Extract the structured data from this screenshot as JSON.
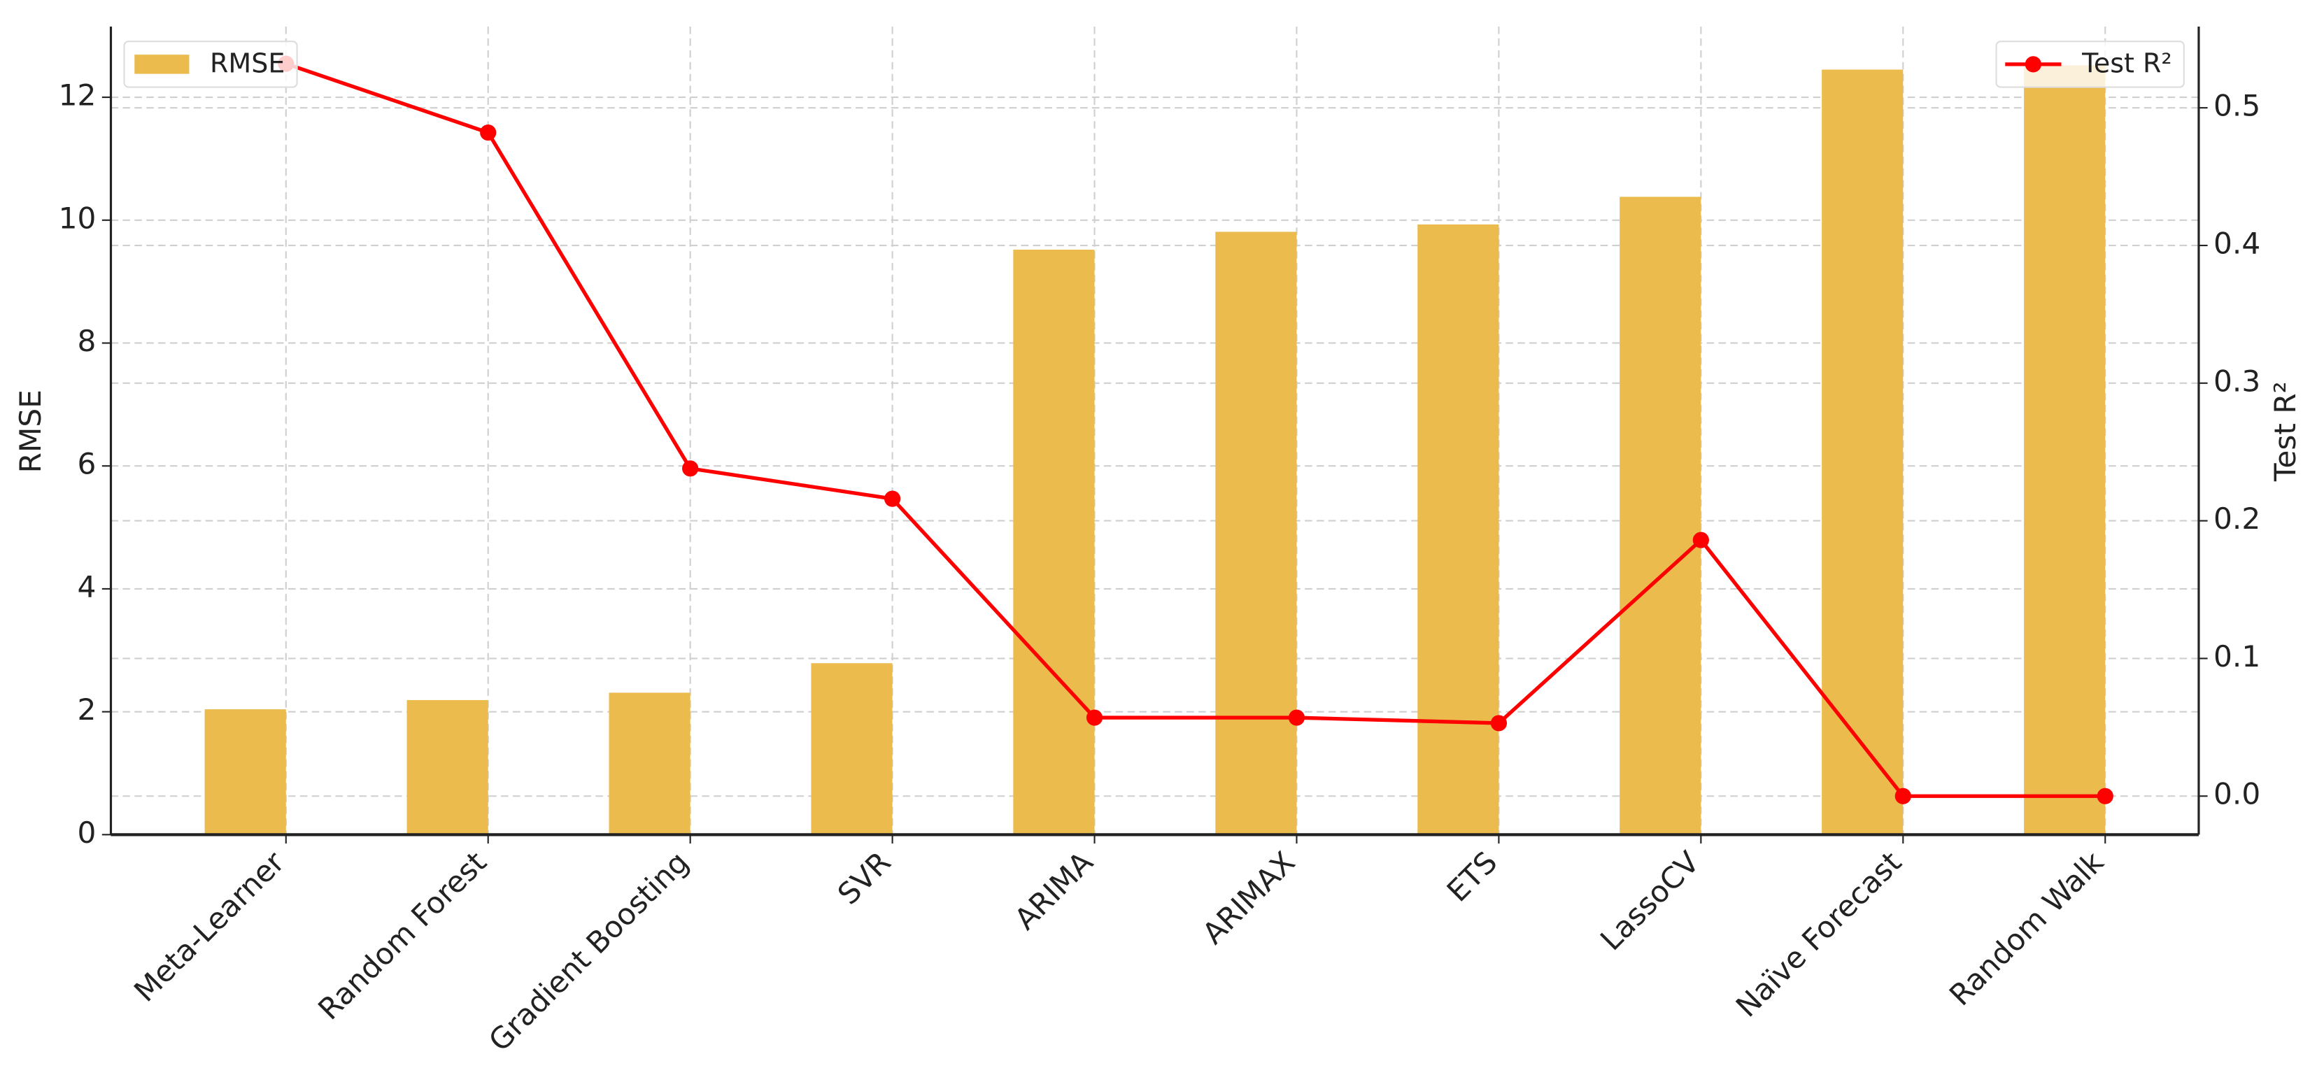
{
  "chart_data": {
    "type": "bar",
    "y_label": "RMSE",
    "y2_label": "Test R²",
    "categories": [
      "Meta-Learner",
      "Random Forest",
      "Gradient Boosting",
      "SVR",
      "ARIMA",
      "ARIMAX",
      "ETS",
      "LassoCV",
      "Naïve Forecast",
      "Random Walk"
    ],
    "series": [
      {
        "name": "RMSE",
        "type": "bar",
        "color": "#ebbb4e",
        "values": [
          2.04,
          2.19,
          2.31,
          2.79,
          9.52,
          9.81,
          9.93,
          10.38,
          12.45,
          12.52
        ]
      },
      {
        "name": "Test R²",
        "type": "line",
        "axis": "y2",
        "color": "#ff0000",
        "values": [
          0.532,
          0.482,
          0.238,
          0.216,
          0.057,
          0.057,
          0.053,
          0.186,
          0.0,
          0.0
        ]
      }
    ],
    "ylim": [
      0,
      13.15
    ],
    "yticks": [
      0,
      2,
      4,
      6,
      8,
      10,
      12
    ],
    "y2lim": [
      -0.028,
      0.559
    ],
    "y2ticks": [
      {
        "value": 0,
        "label": "0.0"
      },
      0.1,
      0.2,
      0.3,
      0.4,
      0.5
    ],
    "grid": true,
    "legend": [
      "upper left",
      "upper right"
    ]
  }
}
